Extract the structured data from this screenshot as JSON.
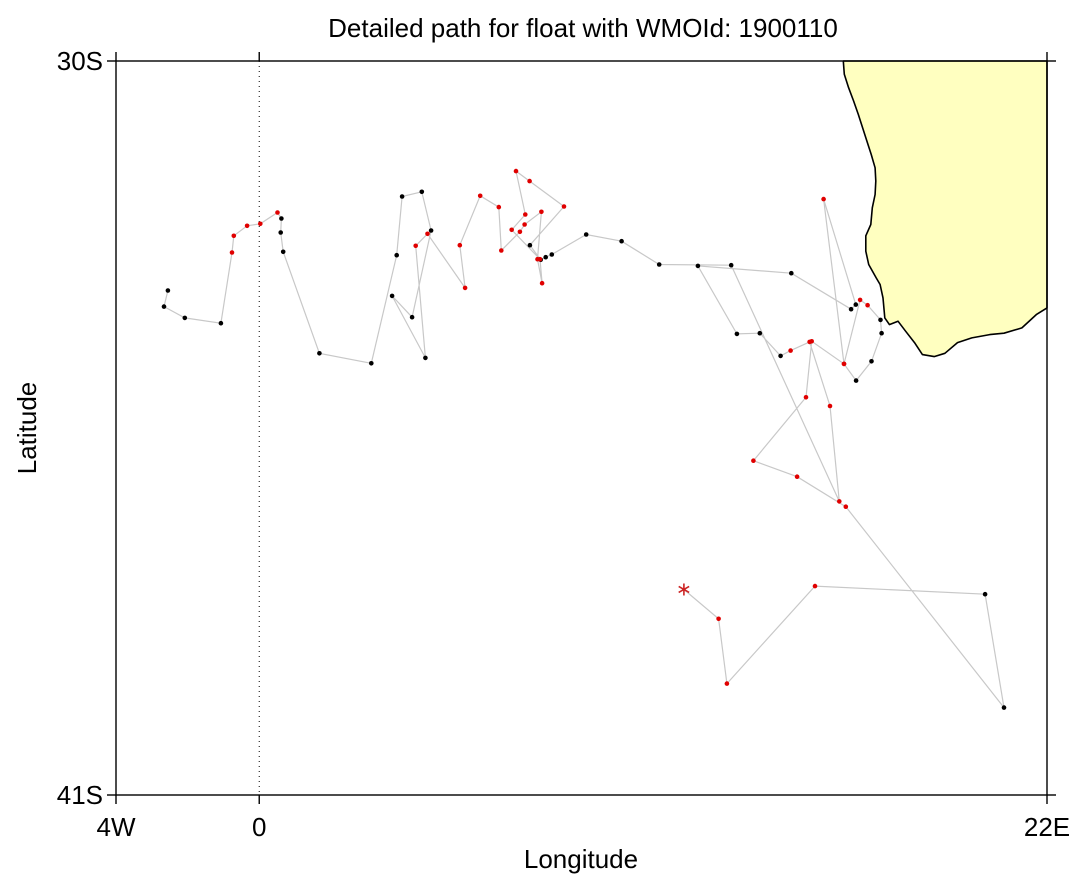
{
  "chart_data": {
    "type": "scatter",
    "title": "Detailed path for float with WMOId: 1900110",
    "xlabel": "Longitude",
    "ylabel": "Latitude",
    "xlim": [
      -4,
      22
    ],
    "ylim": [
      -41,
      -30
    ],
    "x_ticks": [
      {
        "value": -4,
        "label": "4W"
      },
      {
        "value": 0,
        "label": "0"
      },
      {
        "value": 22,
        "label": "22E"
      }
    ],
    "y_ticks": [
      {
        "value": -30,
        "label": "30S"
      },
      {
        "value": -41,
        "label": "41S"
      }
    ],
    "grid": false,
    "meridian_line_at": 0,
    "colors": {
      "track": "#c8c8c8",
      "profile_black": "#000000",
      "profile_red": "#e00000",
      "start_marker": "#cc2222",
      "land": "#ffffc0"
    },
    "start_position": {
      "lon": 11.86,
      "lat": -37.92
    },
    "track": [
      {
        "lon": 11.86,
        "lat": -37.92,
        "color": "red"
      },
      {
        "lon": 12.83,
        "lat": -38.36,
        "color": "red"
      },
      {
        "lon": 13.06,
        "lat": -39.33,
        "color": "red"
      },
      {
        "lon": 15.52,
        "lat": -37.87,
        "color": "red"
      },
      {
        "lon": 20.27,
        "lat": -37.99,
        "color": "black"
      },
      {
        "lon": 20.8,
        "lat": -39.69,
        "color": "black"
      },
      {
        "lon": 16.38,
        "lat": -36.68,
        "color": "red"
      },
      {
        "lon": 15.02,
        "lat": -36.23,
        "color": "red"
      },
      {
        "lon": 13.8,
        "lat": -35.99,
        "color": "red"
      },
      {
        "lon": 15.27,
        "lat": -35.04,
        "color": "red"
      },
      {
        "lon": 15.43,
        "lat": -34.2,
        "color": "red"
      },
      {
        "lon": 16.33,
        "lat": -34.54,
        "color": "red"
      },
      {
        "lon": 16.67,
        "lat": -34.79,
        "color": "black"
      },
      {
        "lon": 17.1,
        "lat": -34.5,
        "color": "black"
      },
      {
        "lon": 17.38,
        "lat": -34.08,
        "color": "black"
      },
      {
        "lon": 17.35,
        "lat": -33.88,
        "color": "black"
      },
      {
        "lon": 16.99,
        "lat": -33.66,
        "color": "red"
      },
      {
        "lon": 16.78,
        "lat": -33.58,
        "color": "red"
      },
      {
        "lon": 16.33,
        "lat": -34.54,
        "color": "red"
      },
      {
        "lon": 15.76,
        "lat": -32.07,
        "color": "red"
      },
      {
        "lon": 16.66,
        "lat": -33.65,
        "color": "black"
      },
      {
        "lon": 16.53,
        "lat": -33.72,
        "color": "black"
      },
      {
        "lon": 14.86,
        "lat": -33.18,
        "color": "black"
      },
      {
        "lon": 12.25,
        "lat": -33.07,
        "color": "black"
      },
      {
        "lon": 13.34,
        "lat": -34.09,
        "color": "black"
      },
      {
        "lon": 13.98,
        "lat": -34.08,
        "color": "black"
      },
      {
        "lon": 14.56,
        "lat": -34.42,
        "color": "black"
      },
      {
        "lon": 14.84,
        "lat": -34.34,
        "color": "red"
      },
      {
        "lon": 15.37,
        "lat": -34.21,
        "color": "red"
      },
      {
        "lon": 15.94,
        "lat": -35.17,
        "color": "red"
      },
      {
        "lon": 16.2,
        "lat": -36.6,
        "color": "red"
      },
      {
        "lon": 13.18,
        "lat": -33.06,
        "color": "black"
      },
      {
        "lon": 11.17,
        "lat": -33.05,
        "color": "black"
      },
      {
        "lon": 10.12,
        "lat": -32.7,
        "color": "black"
      },
      {
        "lon": 9.13,
        "lat": -32.6,
        "color": "black"
      },
      {
        "lon": 8.17,
        "lat": -32.9,
        "color": "black"
      },
      {
        "lon": 8.0,
        "lat": -32.94,
        "color": "black"
      },
      {
        "lon": 7.86,
        "lat": -32.98,
        "color": "black"
      },
      {
        "lon": 7.56,
        "lat": -32.76,
        "color": "black"
      },
      {
        "lon": 8.51,
        "lat": -32.18,
        "color": "red"
      },
      {
        "lon": 7.55,
        "lat": -31.8,
        "color": "red"
      },
      {
        "lon": 7.17,
        "lat": -31.65,
        "color": "red"
      },
      {
        "lon": 7.43,
        "lat": -32.3,
        "color": "red"
      },
      {
        "lon": 7.05,
        "lat": -32.53,
        "color": "red"
      },
      {
        "lon": 7.84,
        "lat": -32.97,
        "color": "red"
      },
      {
        "lon": 7.9,
        "lat": -33.33,
        "color": "red"
      },
      {
        "lon": 7.77,
        "lat": -32.97,
        "color": "red"
      },
      {
        "lon": 7.88,
        "lat": -32.26,
        "color": "red"
      },
      {
        "lon": 7.41,
        "lat": -32.45,
        "color": "red"
      },
      {
        "lon": 7.28,
        "lat": -32.56,
        "color": "red"
      },
      {
        "lon": 6.76,
        "lat": -32.84,
        "color": "red"
      },
      {
        "lon": 6.69,
        "lat": -32.19,
        "color": "red"
      },
      {
        "lon": 6.17,
        "lat": -32.02,
        "color": "red"
      },
      {
        "lon": 5.6,
        "lat": -32.76,
        "color": "red"
      },
      {
        "lon": 5.75,
        "lat": -33.4,
        "color": "red"
      },
      {
        "lon": 4.7,
        "lat": -32.59,
        "color": "red"
      },
      {
        "lon": 4.37,
        "lat": -32.77,
        "color": "red"
      },
      {
        "lon": 4.64,
        "lat": -34.45,
        "color": "black"
      },
      {
        "lon": 3.71,
        "lat": -33.52,
        "color": "black"
      },
      {
        "lon": 4.27,
        "lat": -33.84,
        "color": "black"
      },
      {
        "lon": 4.8,
        "lat": -32.54,
        "color": "black"
      },
      {
        "lon": 4.54,
        "lat": -31.96,
        "color": "black"
      },
      {
        "lon": 3.99,
        "lat": -32.03,
        "color": "black"
      },
      {
        "lon": 3.84,
        "lat": -32.91,
        "color": "black"
      },
      {
        "lon": 3.13,
        "lat": -34.53,
        "color": "black"
      },
      {
        "lon": 1.68,
        "lat": -34.38,
        "color": "black"
      },
      {
        "lon": 0.67,
        "lat": -32.86,
        "color": "black"
      },
      {
        "lon": 0.6,
        "lat": -32.57,
        "color": "black"
      },
      {
        "lon": 0.62,
        "lat": -32.36,
        "color": "black"
      },
      {
        "lon": 0.51,
        "lat": -32.27,
        "color": "red"
      },
      {
        "lon": 0.03,
        "lat": -32.44,
        "color": "red"
      },
      {
        "lon": -0.34,
        "lat": -32.47,
        "color": "red"
      },
      {
        "lon": -0.71,
        "lat": -32.62,
        "color": "red"
      },
      {
        "lon": -0.76,
        "lat": -32.87,
        "color": "red"
      },
      {
        "lon": -1.07,
        "lat": -33.93,
        "color": "black"
      },
      {
        "lon": -2.08,
        "lat": -33.85,
        "color": "black"
      },
      {
        "lon": -2.66,
        "lat": -33.68,
        "color": "black"
      },
      {
        "lon": -2.55,
        "lat": -33.44,
        "color": "black"
      }
    ],
    "land_outline": [
      [
        16.31,
        -30.0
      ],
      [
        16.34,
        -30.2
      ],
      [
        16.46,
        -30.4
      ],
      [
        16.6,
        -30.6
      ],
      [
        16.73,
        -30.8
      ],
      [
        16.85,
        -31.0
      ],
      [
        16.97,
        -31.2
      ],
      [
        17.09,
        -31.4
      ],
      [
        17.2,
        -31.6
      ],
      [
        17.22,
        -31.8
      ],
      [
        17.2,
        -32.0
      ],
      [
        17.12,
        -32.2
      ],
      [
        17.08,
        -32.45
      ],
      [
        16.94,
        -32.62
      ],
      [
        16.94,
        -32.85
      ],
      [
        17.02,
        -33.05
      ],
      [
        17.23,
        -33.25
      ],
      [
        17.34,
        -33.35
      ],
      [
        17.42,
        -33.55
      ],
      [
        17.47,
        -33.85
      ],
      [
        17.6,
        -33.95
      ],
      [
        17.84,
        -33.9
      ],
      [
        18.05,
        -34.05
      ],
      [
        18.3,
        -34.22
      ],
      [
        18.52,
        -34.4
      ],
      [
        18.85,
        -34.43
      ],
      [
        19.15,
        -34.38
      ],
      [
        19.5,
        -34.22
      ],
      [
        19.9,
        -34.15
      ],
      [
        20.4,
        -34.1
      ],
      [
        20.8,
        -34.08
      ],
      [
        21.3,
        -34.0
      ],
      [
        21.7,
        -33.8
      ],
      [
        22.0,
        -33.7
      ],
      [
        22.0,
        -30.0
      ]
    ]
  }
}
